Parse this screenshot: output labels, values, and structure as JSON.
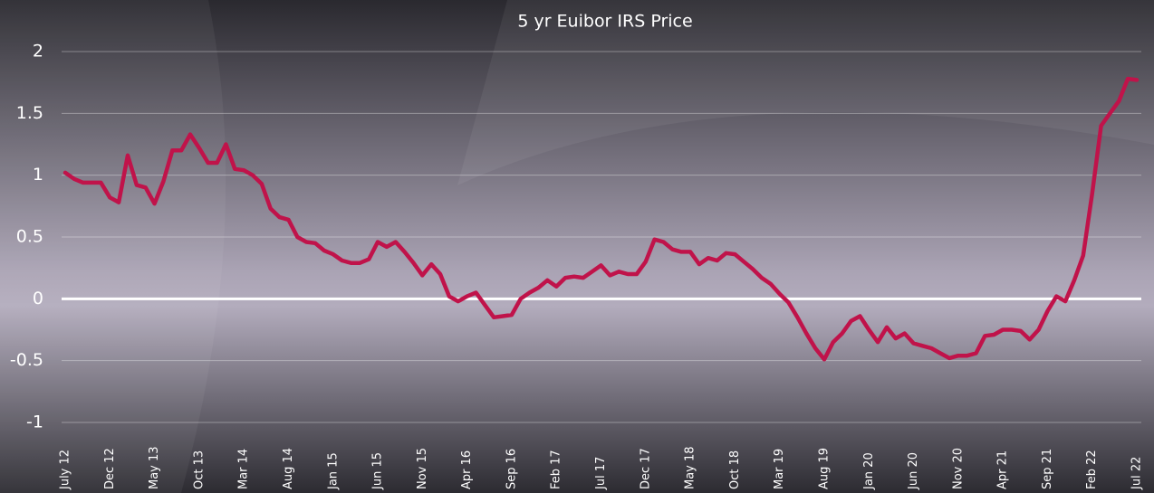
{
  "chart_data": {
    "type": "line",
    "title": "5 yr Euibor IRS Price",
    "categories": [
      "July 12",
      null,
      null,
      null,
      null,
      "Dec 12",
      null,
      null,
      null,
      null,
      "May 13",
      null,
      null,
      null,
      null,
      "Oct 13",
      null,
      null,
      null,
      null,
      "Mar 14",
      null,
      null,
      null,
      null,
      "Aug 14",
      null,
      null,
      null,
      null,
      "Jan 15",
      null,
      null,
      null,
      null,
      "Jun 15",
      null,
      null,
      null,
      null,
      "Nov 15",
      null,
      null,
      null,
      null,
      "Apr 16",
      null,
      null,
      null,
      null,
      "Sep 16",
      null,
      null,
      null,
      null,
      "Feb 17",
      null,
      null,
      null,
      null,
      "Jul 17",
      null,
      null,
      null,
      null,
      "Dec 17",
      null,
      null,
      null,
      null,
      "May 18",
      null,
      null,
      null,
      null,
      "Oct 18",
      null,
      null,
      null,
      null,
      "Mar 19",
      null,
      null,
      null,
      null,
      "Aug 19",
      null,
      null,
      null,
      null,
      "Jan 20",
      null,
      null,
      null,
      null,
      "Jun 20",
      null,
      null,
      null,
      null,
      "Nov 20",
      null,
      null,
      null,
      null,
      "Apr 21",
      null,
      null,
      null,
      null,
      "Sep 21",
      null,
      null,
      null,
      null,
      "Feb 22",
      null,
      null,
      null,
      null,
      "Jul 22"
    ],
    "series": [
      {
        "color": "#c0134a",
        "values": [
          1.02,
          0.97,
          0.94,
          0.94,
          0.94,
          0.82,
          0.78,
          1.16,
          0.92,
          0.9,
          0.77,
          0.95,
          1.2,
          1.2,
          1.33,
          1.22,
          1.1,
          1.1,
          1.25,
          1.05,
          1.04,
          1.0,
          0.93,
          0.73,
          0.66,
          0.64,
          0.5,
          0.46,
          0.45,
          0.39,
          0.36,
          0.31,
          0.29,
          0.29,
          0.32,
          0.46,
          0.42,
          0.46,
          0.38,
          0.29,
          0.19,
          0.28,
          0.2,
          0.02,
          -0.02,
          0.02,
          0.05,
          -0.05,
          -0.15,
          -0.14,
          -0.13,
          0.0,
          0.05,
          0.09,
          0.15,
          0.1,
          0.17,
          0.18,
          0.17,
          0.22,
          0.27,
          0.19,
          0.22,
          0.2,
          0.2,
          0.3,
          0.48,
          0.46,
          0.4,
          0.38,
          0.38,
          0.28,
          0.33,
          0.31,
          0.37,
          0.36,
          0.3,
          0.24,
          0.17,
          0.12,
          0.04,
          -0.03,
          -0.15,
          -0.28,
          -0.4,
          -0.49,
          -0.35,
          -0.28,
          -0.18,
          -0.14,
          -0.25,
          -0.35,
          -0.23,
          -0.32,
          -0.28,
          -0.36,
          -0.38,
          -0.4,
          -0.44,
          -0.48,
          -0.46,
          -0.46,
          -0.44,
          -0.3,
          -0.29,
          -0.25,
          -0.25,
          -0.26,
          -0.33,
          -0.25,
          -0.1,
          0.02,
          -0.02,
          0.15,
          0.35,
          0.85,
          1.4,
          1.5,
          1.6,
          1.78,
          1.77
        ]
      }
    ],
    "ylim": [
      -1,
      2
    ],
    "yticks": [
      -1,
      -0.5,
      0,
      0.5,
      1,
      1.5,
      2
    ],
    "grid": true
  }
}
